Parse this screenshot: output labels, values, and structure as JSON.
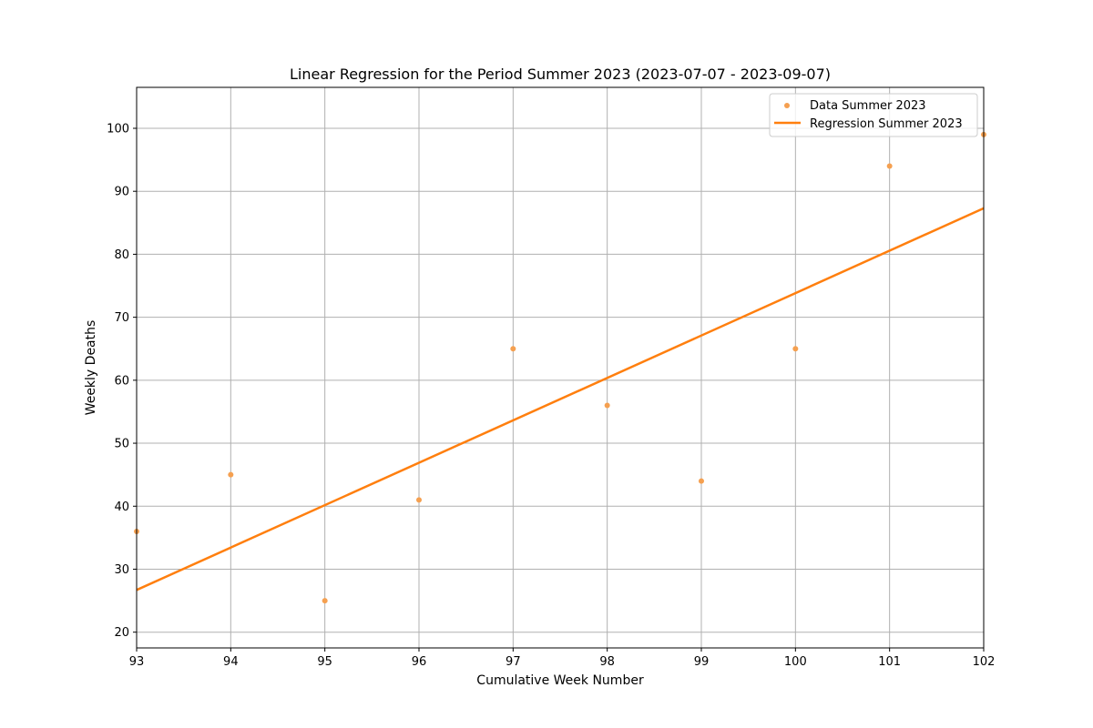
{
  "chart_data": {
    "type": "scatter",
    "title": "Linear Regression for the Period Summer 2023 (2023-07-07 - 2023-09-07)",
    "xlabel": "Cumulative Week Number",
    "ylabel": "Weekly Deaths",
    "xlim": [
      93,
      102
    ],
    "ylim": [
      17.5,
      106.5
    ],
    "xticks": [
      93,
      94,
      95,
      96,
      97,
      98,
      99,
      100,
      101,
      102
    ],
    "yticks": [
      20,
      30,
      40,
      50,
      60,
      70,
      80,
      90,
      100
    ],
    "grid": true,
    "legend_position": "top-right",
    "colors": {
      "points": "#f5a050",
      "line": "#ff7f0e",
      "grid": "#b0b0b0",
      "axes": "#000000"
    },
    "series": [
      {
        "name": "Data Summer 2023",
        "kind": "scatter",
        "x": [
          93,
          94,
          95,
          96,
          97,
          98,
          99,
          100,
          101,
          102
        ],
        "y": [
          36,
          45,
          25,
          41,
          65,
          56,
          44,
          65,
          94,
          99
        ]
      },
      {
        "name": "Regression Summer 2023",
        "kind": "line",
        "x": [
          93,
          102
        ],
        "y": [
          26.7,
          87.3
        ]
      }
    ]
  }
}
